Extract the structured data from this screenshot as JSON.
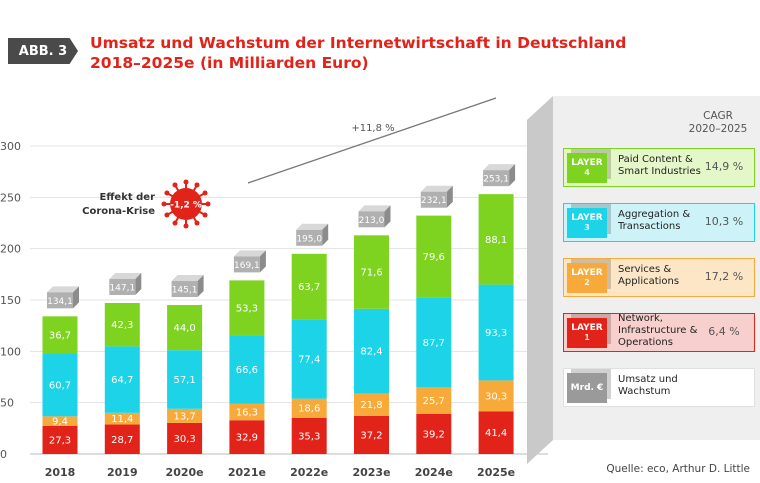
{
  "badge": "ABB. 3",
  "title_line1": "Umsatz und Wachstum der Internetwirtschaft in Deutschland",
  "title_line2": "2018–2025e (in Milliarden Euro)",
  "source": "Quelle: eco, Arthur D. Little",
  "cagr_header_line1": "CAGR",
  "cagr_header_line2": "2020–2025",
  "growth_label": "+11,8 %",
  "corona_label_line1": "Effekt der",
  "corona_label_line2": "Corona-Krise",
  "corona_value": "-1,2 %",
  "legend": [
    {
      "layer": "LAYER",
      "num": "4",
      "label_line1": "Paid Content &",
      "label_line2": "Smart Industries",
      "label_line3": "",
      "cagr": "14,9 %",
      "color": "#7ed321",
      "tint": "#e4f7c8"
    },
    {
      "layer": "LAYER",
      "num": "3",
      "label_line1": "Aggregation &",
      "label_line2": "Transactions",
      "label_line3": "",
      "cagr": "10,3 %",
      "color": "#1cd3e8",
      "tint": "#cdf3f8"
    },
    {
      "layer": "LAYER",
      "num": "2",
      "label_line1": "Services &",
      "label_line2": "Applications",
      "label_line3": "",
      "cagr": "17,2 %",
      "color": "#f7a93a",
      "tint": "#fde6c6"
    },
    {
      "layer": "LAYER",
      "num": "1",
      "label_line1": "Network,",
      "label_line2": "Infrastructure &",
      "label_line3": "Operations",
      "cagr": "6,4 %",
      "color": "#e2231a",
      "tint": "#f7cfcc"
    },
    {
      "layer": "Mrd. €",
      "num": "",
      "label_line1": "Umsatz und",
      "label_line2": "Wachstum",
      "label_line3": "",
      "cagr": "",
      "color": "#9a9a9a",
      "tint": "#ffffff"
    }
  ],
  "chart_data": {
    "type": "bar",
    "stacked": true,
    "categories": [
      "2018",
      "2019",
      "2020e",
      "2021e",
      "2022e",
      "2023e",
      "2024e",
      "2025e"
    ],
    "series": [
      {
        "name": "Network, Infrastructure & Operations",
        "color": "#e2231a",
        "values": [
          27.3,
          28.7,
          30.3,
          32.9,
          35.3,
          37.2,
          39.2,
          41.4
        ],
        "labels": [
          "27,3",
          "28,7",
          "30,3",
          "32,9",
          "35,3",
          "37,2",
          "39,2",
          "41,4"
        ]
      },
      {
        "name": "Services & Applications",
        "color": "#f7a93a",
        "values": [
          9.4,
          11.4,
          13.7,
          16.3,
          18.6,
          21.8,
          25.7,
          30.3
        ],
        "labels": [
          "9,4",
          "11,4",
          "13,7",
          "16,3",
          "18,6",
          "21,8",
          "25,7",
          "30,3"
        ]
      },
      {
        "name": "Aggregation & Transactions",
        "color": "#1cd3e8",
        "values": [
          60.7,
          64.7,
          57.1,
          66.6,
          77.4,
          82.4,
          87.7,
          93.3
        ],
        "labels": [
          "60,7",
          "64,7",
          "57,1",
          "66,6",
          "77,4",
          "82,4",
          "87,7",
          "93,3"
        ]
      },
      {
        "name": "Paid Content & Smart Industries",
        "color": "#7ed321",
        "values": [
          36.7,
          42.3,
          44.0,
          53.3,
          63.7,
          71.6,
          79.6,
          88.1
        ],
        "labels": [
          "36,7",
          "42,3",
          "44,0",
          "53,3",
          "63,7",
          "71,6",
          "79,6",
          "88,1"
        ]
      }
    ],
    "totals": [
      134.1,
      147.1,
      145.1,
      169.1,
      195.0,
      213.0,
      232.1,
      253.1
    ],
    "total_labels": [
      "134,1",
      "147,1",
      "145,1",
      "169,1",
      "195,0",
      "213,0",
      "232,1",
      "253,1"
    ],
    "y_ticks": [
      0,
      50,
      100,
      150,
      200,
      250,
      300
    ],
    "ylim": [
      0,
      300
    ],
    "grid": true
  }
}
